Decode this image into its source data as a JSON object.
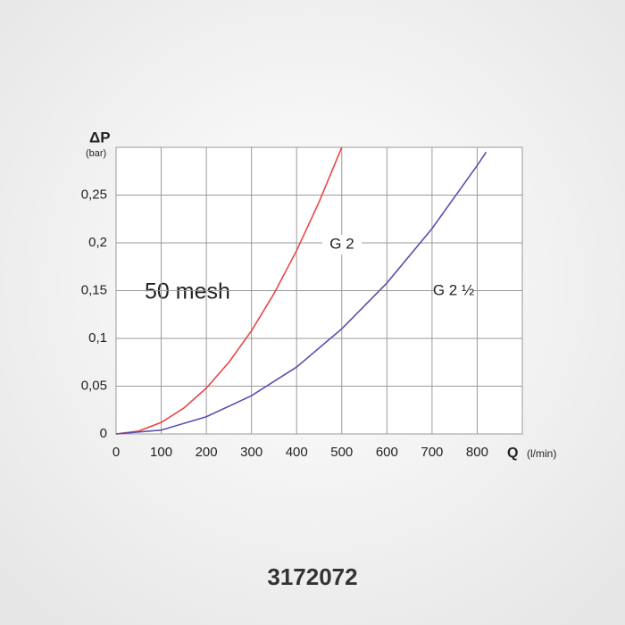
{
  "chart_data": {
    "type": "line",
    "y_label": "ΔP",
    "y_unit": "(bar)",
    "x_label": "Q",
    "x_unit": "(l/min)",
    "annotations": [
      "50 mesh"
    ],
    "series": [
      {
        "name": "G 2",
        "color": "#e8474a",
        "x": [
          0,
          50,
          100,
          150,
          200,
          250,
          300,
          350,
          400,
          450,
          500
        ],
        "values": [
          0,
          0.003,
          0.012,
          0.027,
          0.048,
          0.075,
          0.108,
          0.147,
          0.192,
          0.243,
          0.3
        ]
      },
      {
        "name": "G 2 ½",
        "color": "#5a4fb0",
        "x": [
          0,
          100,
          200,
          300,
          400,
          500,
          600,
          700,
          800,
          820
        ],
        "values": [
          0,
          0.004,
          0.018,
          0.04,
          0.07,
          0.11,
          0.158,
          0.215,
          0.281,
          0.295
        ]
      }
    ],
    "xlim": [
      0,
      900
    ],
    "xticks": [
      0,
      100,
      200,
      300,
      400,
      500,
      600,
      700,
      800
    ],
    "ylim": [
      0,
      0.3
    ],
    "yticks": [
      0,
      {
        "value": 0.05,
        "label": "0,05"
      },
      {
        "value": 0.1,
        "label": "0,1"
      },
      {
        "value": 0.15,
        "label": "0,15"
      },
      {
        "value": 0.2,
        "label": "0,2"
      },
      {
        "value": 0.25,
        "label": "0,25"
      }
    ],
    "grid": true
  },
  "caption": "3172072"
}
